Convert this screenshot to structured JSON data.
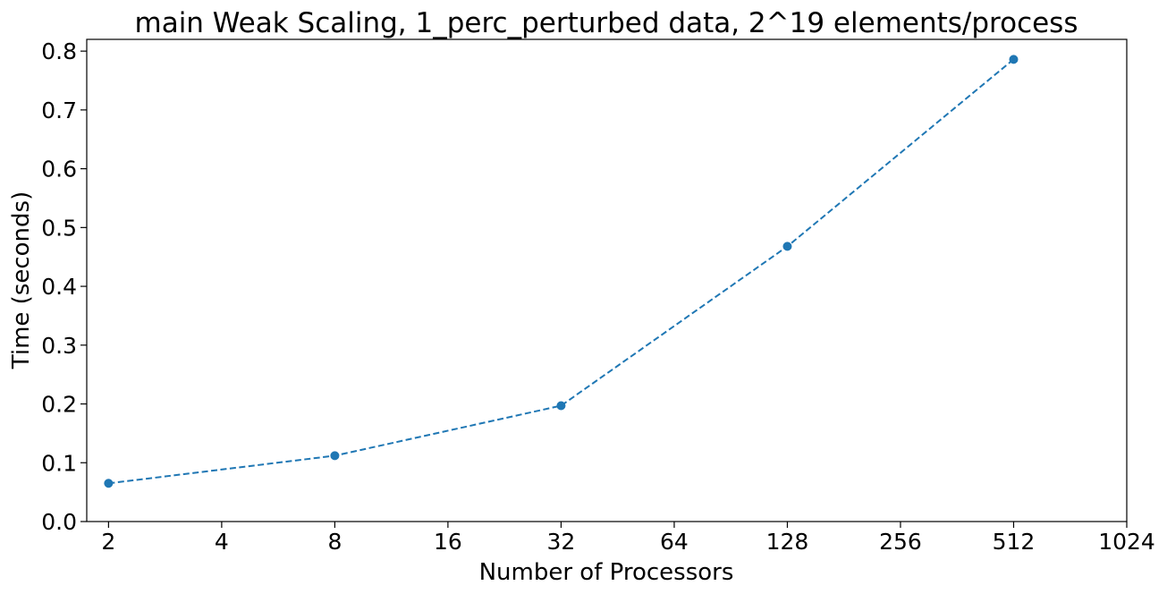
{
  "chart_data": {
    "type": "line",
    "title": "main Weak Scaling, 1_perc_perturbed data, 2^19 elements/process",
    "xlabel": "Number of Processors",
    "ylabel": "Time (seconds)",
    "xscale": "log2",
    "xlim": [
      1.75,
      1024
    ],
    "ylim": [
      0.0,
      0.82
    ],
    "xticks": [
      2,
      4,
      8,
      16,
      32,
      64,
      128,
      256,
      512,
      1024
    ],
    "xtick_labels": [
      "2",
      "4",
      "8",
      "16",
      "32",
      "64",
      "128",
      "256",
      "512",
      "1024"
    ],
    "yticks": [
      0.0,
      0.1,
      0.2,
      0.3,
      0.4,
      0.5,
      0.6,
      0.7,
      0.8
    ],
    "ytick_labels": [
      "0.0",
      "0.1",
      "0.2",
      "0.3",
      "0.4",
      "0.5",
      "0.6",
      "0.7",
      "0.8"
    ],
    "grid": false,
    "legend": "none",
    "series": [
      {
        "line_style": "dashed",
        "marker": "circle",
        "color": "#1f77b4",
        "x": [
          2,
          8,
          32,
          128,
          512
        ],
        "y": [
          0.065,
          0.112,
          0.197,
          0.468,
          0.786
        ]
      }
    ]
  }
}
